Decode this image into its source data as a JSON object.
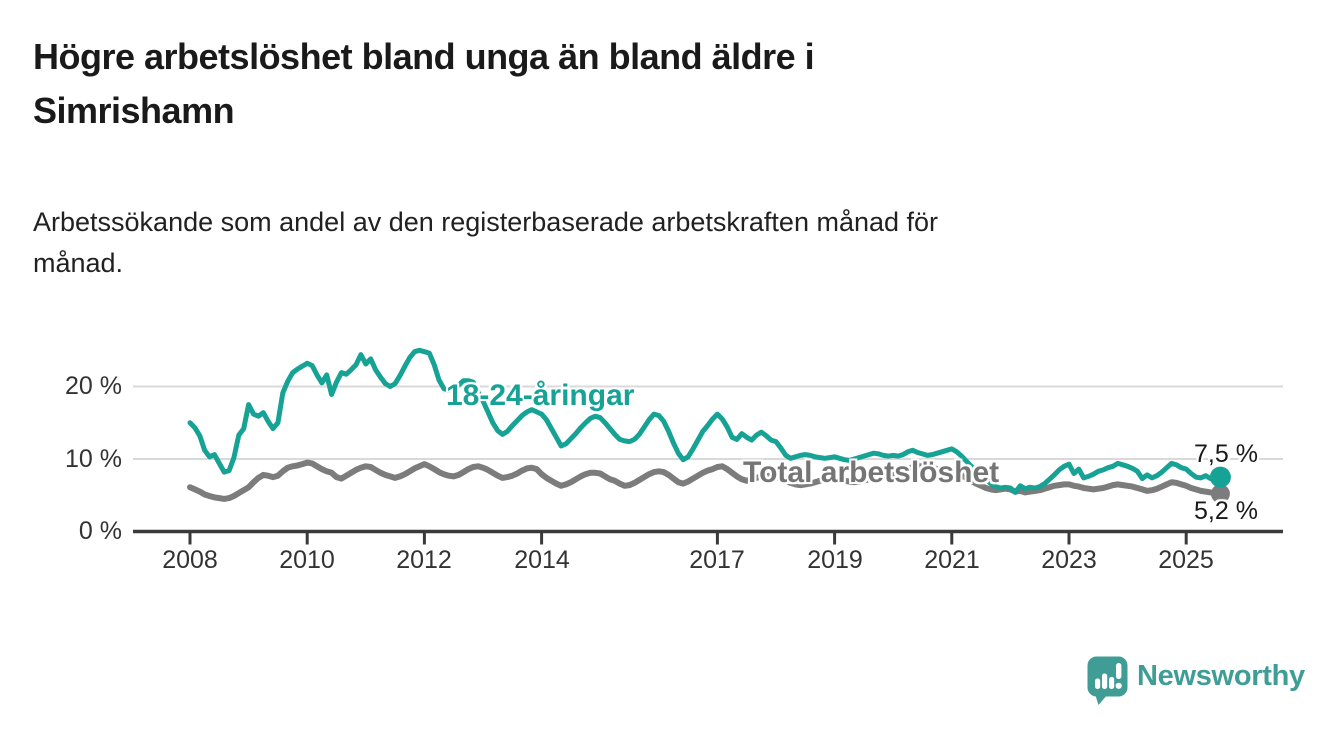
{
  "header": {
    "title_line1": "Högre arbetslöshet bland unga än bland äldre i",
    "title_line2": "Simrishamn",
    "subtitle_line1": "Arbetssökande som andel av den registerbaserade arbetskraften månad för",
    "subtitle_line2": "månad."
  },
  "colors": {
    "young_series": "#16a294",
    "total_series": "#7c7c7c",
    "grid": "#d9d9d9",
    "axis": "#3a3a3a",
    "axis_text": "#333333",
    "title_text": "#1a1a1a",
    "logo_teal": "#3f9d96"
  },
  "chart_data": {
    "type": "line",
    "title": "Högre arbetslöshet bland unga än bland äldre i Simrishamn",
    "subtitle": "Arbetssökande som andel av den registerbaserade arbetskraften månad för månad.",
    "x_start": "2008-01",
    "x_end": "2025-08",
    "frequency": "monthly",
    "ylim": [
      0,
      27
    ],
    "grid": "horizontal",
    "legend_position": "inline-labels",
    "x_axis": {
      "tick_years": [
        2008,
        2010,
        2012,
        2014,
        2017,
        2019,
        2021,
        2023,
        2025
      ]
    },
    "y_axis": {
      "ticks": [
        {
          "value": 20,
          "label": "20 %"
        },
        {
          "value": 10,
          "label": "10 %"
        },
        {
          "value": 0,
          "label": "0 %"
        }
      ]
    },
    "series": [
      {
        "name": "Total arbetslöshet",
        "color": "#7c7c7c",
        "end_label": "5,2 %",
        "end_value": 5.2,
        "line_width": 6,
        "dot_radius": 9.5,
        "values": [
          6.1,
          5.8,
          5.5,
          5.1,
          4.9,
          4.7,
          4.6,
          4.5,
          4.6,
          4.9,
          5.3,
          5.7,
          6.1,
          6.8,
          7.4,
          7.8,
          7.7,
          7.5,
          7.7,
          8.3,
          8.8,
          9.0,
          9.1,
          9.3,
          9.5,
          9.4,
          9.0,
          8.6,
          8.3,
          8.1,
          7.5,
          7.3,
          7.7,
          8.1,
          8.5,
          8.8,
          9.0,
          8.9,
          8.5,
          8.1,
          7.8,
          7.6,
          7.4,
          7.6,
          7.9,
          8.3,
          8.7,
          9.0,
          9.3,
          9.0,
          8.6,
          8.2,
          7.9,
          7.7,
          7.6,
          7.8,
          8.2,
          8.6,
          8.9,
          9.0,
          8.8,
          8.5,
          8.1,
          7.7,
          7.4,
          7.5,
          7.7,
          8.0,
          8.4,
          8.7,
          8.8,
          8.6,
          7.9,
          7.4,
          7.0,
          6.6,
          6.3,
          6.5,
          6.8,
          7.2,
          7.6,
          7.9,
          8.1,
          8.1,
          8.0,
          7.6,
          7.2,
          7.0,
          6.6,
          6.3,
          6.4,
          6.7,
          7.1,
          7.5,
          7.9,
          8.2,
          8.3,
          8.2,
          7.8,
          7.3,
          6.8,
          6.6,
          6.9,
          7.3,
          7.7,
          8.1,
          8.4,
          8.6,
          8.9,
          9.0,
          8.6,
          8.1,
          7.6,
          7.2,
          7.0,
          7.2,
          7.4,
          7.6,
          7.7,
          7.6,
          7.5,
          7.3,
          7.0,
          6.7,
          6.5,
          6.4,
          6.5,
          6.6,
          6.8,
          7.0,
          7.1,
          7.2,
          7.3,
          7.2,
          7.0,
          6.9,
          6.8,
          6.9,
          7.0,
          7.2,
          7.4,
          7.5,
          7.6,
          7.7,
          7.8,
          7.9,
          8.2,
          8.6,
          8.9,
          9.0,
          9.0,
          8.9,
          8.8,
          8.6,
          8.5,
          8.4,
          8.3,
          8.1,
          7.8,
          7.4,
          7.0,
          6.6,
          6.3,
          6.0,
          5.8,
          5.7,
          5.8,
          5.9,
          5.8,
          5.5,
          5.6,
          5.4,
          5.5,
          5.6,
          5.7,
          5.9,
          6.1,
          6.3,
          6.4,
          6.5,
          6.5,
          6.3,
          6.2,
          6.0,
          5.9,
          5.8,
          5.9,
          6.0,
          6.2,
          6.4,
          6.5,
          6.4,
          6.3,
          6.2,
          6.0,
          5.8,
          5.6,
          5.7,
          5.9,
          6.2,
          6.5,
          6.8,
          6.7,
          6.5,
          6.3,
          6.0,
          5.8,
          5.6,
          5.5,
          5.4,
          5.3,
          5.2
        ]
      },
      {
        "name": "18-24-åringar",
        "color": "#16a294",
        "end_label": "7,5 %",
        "end_value": 7.5,
        "line_width": 5,
        "dot_radius": 10.5,
        "values": [
          15.0,
          14.3,
          13.2,
          11.2,
          10.3,
          10.6,
          9.4,
          8.2,
          8.4,
          10.2,
          13.3,
          14.2,
          17.5,
          16.2,
          15.9,
          16.4,
          15.2,
          14.2,
          15.0,
          19.1,
          20.7,
          21.9,
          22.4,
          22.8,
          23.2,
          22.9,
          21.6,
          20.5,
          21.6,
          18.9,
          20.6,
          21.9,
          21.7,
          22.3,
          23.0,
          24.4,
          23.1,
          23.8,
          22.3,
          21.3,
          20.4,
          20.0,
          20.4,
          21.5,
          22.8,
          24.0,
          24.8,
          25.0,
          24.8,
          24.6,
          23.0,
          20.9,
          19.7,
          19.5,
          19.8,
          20.2,
          20.8,
          20.8,
          20.6,
          19.2,
          18.0,
          16.5,
          15.0,
          13.9,
          13.4,
          13.8,
          14.6,
          15.3,
          16.0,
          16.5,
          16.8,
          16.5,
          16.2,
          15.4,
          14.2,
          13.0,
          11.8,
          12.1,
          12.8,
          13.5,
          14.3,
          15.0,
          15.6,
          15.9,
          15.7,
          15.0,
          14.2,
          13.4,
          12.7,
          12.5,
          12.4,
          12.7,
          13.4,
          14.4,
          15.4,
          16.2,
          16.0,
          15.2,
          13.8,
          12.2,
          10.8,
          9.9,
          10.3,
          11.4,
          12.6,
          13.8,
          14.6,
          15.5,
          16.2,
          15.5,
          14.4,
          13.0,
          12.7,
          13.5,
          13.0,
          12.6,
          13.3,
          13.7,
          13.2,
          12.6,
          12.4,
          11.5,
          10.5,
          10.1,
          10.3,
          10.5,
          10.6,
          10.5,
          10.3,
          10.2,
          10.1,
          10.2,
          10.3,
          10.1,
          9.9,
          9.8,
          10.0,
          10.2,
          10.4,
          10.6,
          10.8,
          10.7,
          10.5,
          10.4,
          10.5,
          10.4,
          10.6,
          11.0,
          11.2,
          10.9,
          10.7,
          10.5,
          10.6,
          10.8,
          11.0,
          11.2,
          11.4,
          11.0,
          10.4,
          9.7,
          9.0,
          8.4,
          7.8,
          7.2,
          6.6,
          6.2,
          6.0,
          6.1,
          6.0,
          5.4,
          6.3,
          5.9,
          6.1,
          6.0,
          6.2,
          6.6,
          7.2,
          7.8,
          8.5,
          9.0,
          9.3,
          8.0,
          8.6,
          7.4,
          7.6,
          7.9,
          8.3,
          8.5,
          8.8,
          9.0,
          9.4,
          9.2,
          9.0,
          8.7,
          8.3,
          7.3,
          7.8,
          7.4,
          7.7,
          8.2,
          8.8,
          9.4,
          9.2,
          8.8,
          8.6,
          8.0,
          7.5,
          7.4,
          7.7,
          7.3,
          7.2,
          7.5
        ]
      }
    ]
  },
  "footer": {
    "brand": "Newsworthy",
    "logo_icon": "speech-bubble-bar-chart-icon"
  }
}
